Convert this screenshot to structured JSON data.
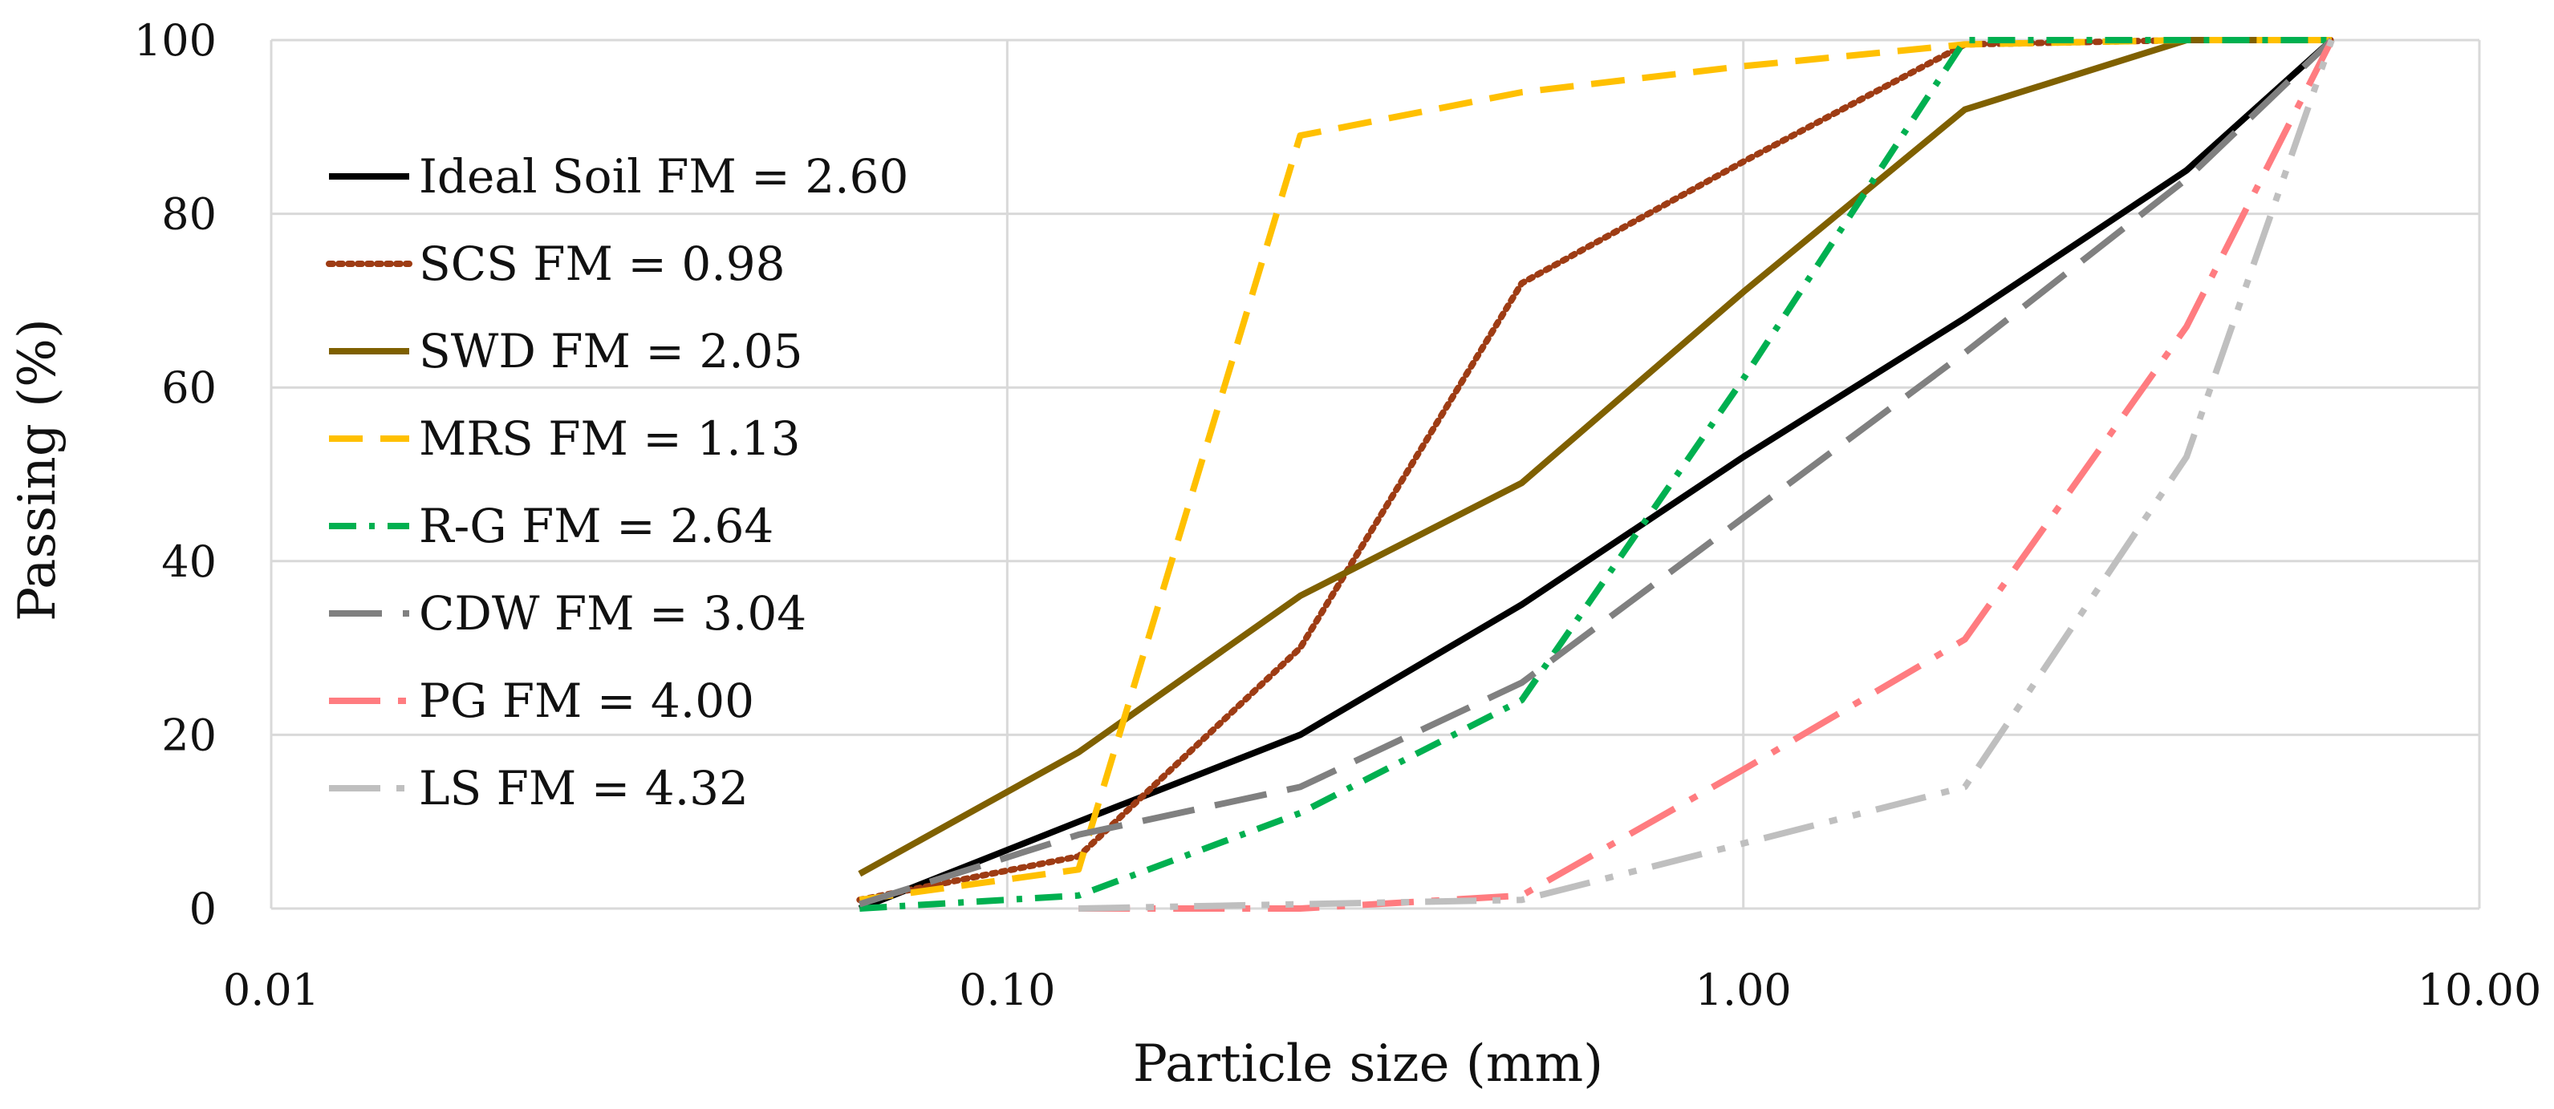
{
  "chart_data": {
    "type": "line",
    "xscale": "log",
    "xlabel": "Particle size (mm)",
    "ylabel": "Passing (%)",
    "xlim": [
      0.01,
      10
    ],
    "ylim": [
      0,
      100
    ],
    "x_ticks": [
      0.01,
      0.1,
      1,
      10
    ],
    "x_tick_labels": [
      "0.01",
      "0.10",
      "1.00",
      "10.00"
    ],
    "y_ticks": [
      0,
      20,
      40,
      60,
      80,
      100
    ],
    "y_tick_labels": [
      "0",
      "20",
      "40",
      "60",
      "80",
      "100"
    ],
    "grid": true,
    "legend_position": "upper-left",
    "series": [
      {
        "name": "Ideal Soil FM = 2.60",
        "color": "#000000",
        "style": "solid",
        "x": [
          0.063,
          0.125,
          0.25,
          0.5,
          1.0,
          2.0,
          4.0,
          6.3
        ],
        "y": [
          0,
          10,
          20,
          35,
          52,
          68,
          85,
          100
        ]
      },
      {
        "name": "SCS FM = 0.98",
        "color": "#9e3c14",
        "style": "dotted",
        "x": [
          0.063,
          0.125,
          0.25,
          0.5,
          1.0,
          2.0,
          4.0,
          6.3
        ],
        "y": [
          1,
          6,
          30,
          72,
          86,
          99.5,
          100,
          100
        ]
      },
      {
        "name": "SWD FM = 2.05",
        "color": "#7f6000",
        "style": "solid",
        "x": [
          0.063,
          0.125,
          0.25,
          0.5,
          1.0,
          2.0,
          4.0,
          6.3
        ],
        "y": [
          4,
          18,
          36,
          49,
          71,
          92,
          100,
          100
        ]
      },
      {
        "name": "MRS FM = 1.13",
        "color": "#ffc000",
        "style": "dash",
        "x": [
          0.063,
          0.125,
          0.25,
          0.5,
          1.0,
          2.0,
          4.0,
          6.3
        ],
        "y": [
          1,
          4.5,
          89,
          94,
          97,
          99.5,
          100,
          100
        ]
      },
      {
        "name": "R-G FM = 2.64",
        "color": "#00b050",
        "style": "dashdot",
        "x": [
          0.063,
          0.125,
          0.25,
          0.5,
          1.0,
          2.0,
          4.0,
          6.3
        ],
        "y": [
          0,
          1.5,
          11,
          24,
          61,
          100,
          100,
          100
        ]
      },
      {
        "name": "CDW FM = 3.04",
        "color": "#808080",
        "style": "longdash",
        "x": [
          0.063,
          0.125,
          0.25,
          0.5,
          1.0,
          2.0,
          4.0,
          6.3
        ],
        "y": [
          0.5,
          8.5,
          14,
          26,
          45,
          64,
          84,
          100
        ]
      },
      {
        "name": "PG FM = 4.00",
        "color": "#ff7c80",
        "style": "longdashdot",
        "x": [
          0.125,
          0.25,
          0.5,
          1.0,
          2.0,
          4.0,
          6.3
        ],
        "y": [
          0,
          0,
          1.5,
          16,
          31,
          67,
          100
        ]
      },
      {
        "name": "LS FM = 4.32",
        "color": "#bfbfbf",
        "style": "longdashdotdot",
        "x": [
          0.125,
          0.25,
          0.5,
          1.0,
          2.0,
          4.0,
          6.3
        ],
        "y": [
          0,
          0.5,
          1,
          7.5,
          14,
          52,
          100
        ]
      }
    ]
  }
}
